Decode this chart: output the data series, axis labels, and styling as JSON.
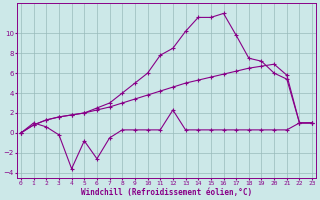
{
  "xlabel": "Windchill (Refroidissement éolien,°C)",
  "bg_color": "#cce8e8",
  "line_color": "#880088",
  "grid_color": "#99bbbb",
  "x_values": [
    0,
    1,
    2,
    3,
    4,
    5,
    6,
    7,
    8,
    9,
    10,
    11,
    12,
    13,
    14,
    15,
    16,
    17,
    18,
    19,
    20,
    21,
    22,
    23
  ],
  "curve_spike": [
    0.0,
    1.0,
    0.6,
    -0.2,
    -3.6,
    -0.8,
    -2.6,
    -0.5,
    0.3,
    0.3,
    0.3,
    0.3,
    2.3,
    0.3,
    0.3,
    0.3,
    0.3,
    0.3,
    0.3,
    0.3,
    0.3,
    0.3,
    1.0,
    1.0
  ],
  "curve_linear1": [
    0.0,
    0.8,
    1.3,
    1.6,
    1.8,
    2.0,
    2.3,
    2.6,
    3.0,
    3.4,
    3.8,
    4.2,
    4.6,
    5.0,
    5.3,
    5.6,
    5.9,
    6.2,
    6.5,
    6.7,
    6.9,
    5.8,
    1.0,
    1.0
  ],
  "curve_arc": [
    0.0,
    0.8,
    1.3,
    1.6,
    1.8,
    2.0,
    2.5,
    3.0,
    4.0,
    5.0,
    6.0,
    7.8,
    8.5,
    10.2,
    11.6,
    11.6,
    12.0,
    9.8,
    7.5,
    7.2,
    6.0,
    5.4,
    1.0,
    1.0
  ],
  "ylim": [
    -4.5,
    13.0
  ],
  "yticks": [
    -4,
    -2,
    0,
    2,
    4,
    6,
    8,
    10
  ],
  "xticks": [
    0,
    1,
    2,
    3,
    4,
    5,
    6,
    7,
    8,
    9,
    10,
    11,
    12,
    13,
    14,
    15,
    16,
    17,
    18,
    19,
    20,
    21,
    22,
    23
  ],
  "figsize": [
    3.2,
    2.0
  ],
  "dpi": 100
}
